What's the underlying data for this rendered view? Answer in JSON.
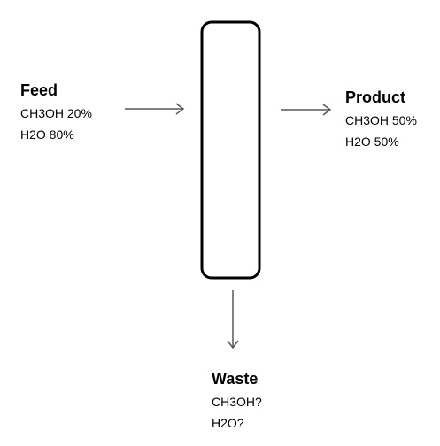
{
  "feed": {
    "title": "Feed",
    "lines": [
      "CH3OH 20%",
      "H2O 80%"
    ]
  },
  "product": {
    "title": "Product",
    "lines": [
      "CH3OH 50%",
      "H2O 50%"
    ]
  },
  "waste": {
    "title": "Waste",
    "lines": [
      "CH3OH?",
      "H2O?"
    ]
  },
  "colors": {
    "column_stroke": "#000000",
    "arrow": "#595959",
    "text": "#000000"
  }
}
